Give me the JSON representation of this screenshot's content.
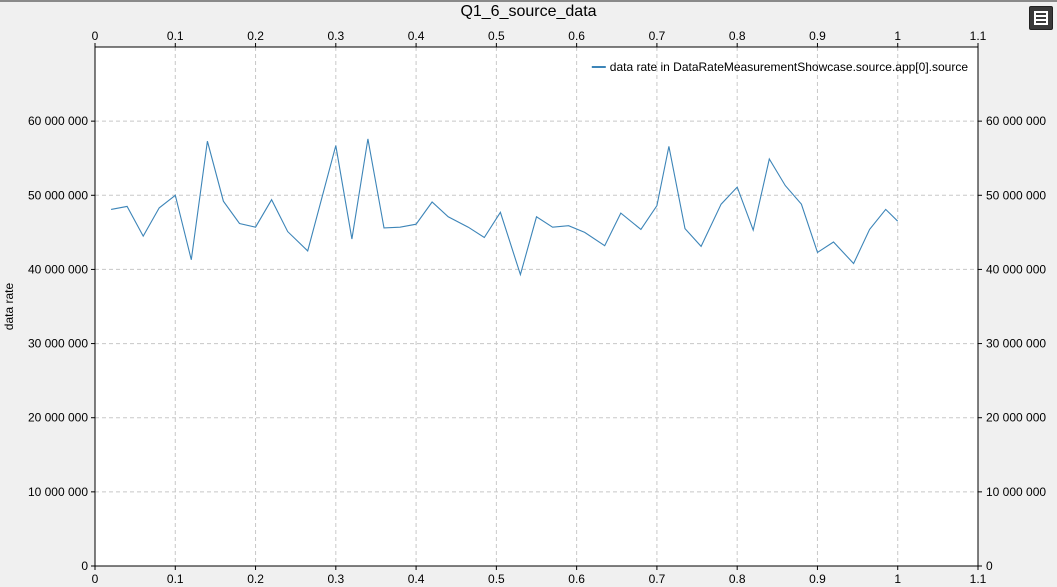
{
  "chart_data": {
    "type": "line",
    "title": "Q1_6_source_data",
    "ylabel": "data rate",
    "xlabel": "",
    "xlim": [
      0,
      1.1
    ],
    "ylim": [
      0,
      70000000
    ],
    "x_ticks": [
      0,
      0.1,
      0.2,
      0.3,
      0.4,
      0.5,
      0.6,
      0.7,
      0.8,
      0.9,
      1,
      1.1
    ],
    "x_tick_labels": [
      "0",
      "0.1",
      "0.2",
      "0.3",
      "0.4",
      "0.5",
      "0.6",
      "0.7",
      "0.8",
      "0.9",
      "1",
      "1.1"
    ],
    "y_ticks": [
      0,
      10000000,
      20000000,
      30000000,
      40000000,
      50000000,
      60000000
    ],
    "y_tick_labels": [
      "0",
      "10 000 000",
      "20 000 000",
      "30 000 000",
      "40 000 000",
      "50 000 000",
      "60 000 000"
    ],
    "grid": true,
    "legend_position": "top-right",
    "series": [
      {
        "name": "data rate in DataRateMeasurementShowcase.source.app[0].source",
        "color": "#3d85b8",
        "x": [
          0.02,
          0.04,
          0.06,
          0.08,
          0.1,
          0.12,
          0.14,
          0.16,
          0.18,
          0.2,
          0.22,
          0.24,
          0.265,
          0.3,
          0.32,
          0.34,
          0.36,
          0.38,
          0.4,
          0.42,
          0.44,
          0.465,
          0.485,
          0.505,
          0.53,
          0.55,
          0.57,
          0.59,
          0.61,
          0.635,
          0.655,
          0.68,
          0.7,
          0.715,
          0.735,
          0.755,
          0.78,
          0.8,
          0.82,
          0.84,
          0.86,
          0.88,
          0.9,
          0.92,
          0.945,
          0.965,
          0.985,
          1.0
        ],
        "y": [
          48100000,
          48500000,
          44500000,
          48300000,
          50000000,
          41300000,
          57300000,
          49200000,
          46200000,
          45700000,
          49400000,
          45100000,
          42500000,
          56700000,
          44100000,
          57600000,
          45600000,
          45700000,
          46100000,
          49100000,
          47100000,
          45700000,
          44300000,
          47700000,
          39300000,
          47100000,
          45700000,
          45900000,
          45000000,
          43200000,
          47600000,
          45400000,
          48600000,
          56600000,
          45500000,
          43100000,
          48800000,
          51100000,
          45300000,
          54900000,
          51300000,
          48800000,
          42300000,
          43700000,
          40800000,
          45400000,
          48100000,
          46500000
        ]
      }
    ]
  }
}
